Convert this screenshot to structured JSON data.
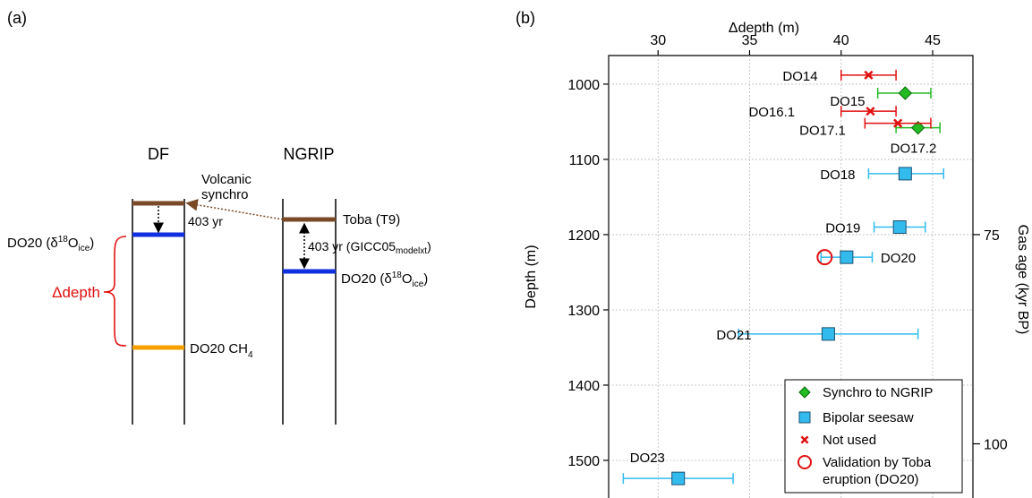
{
  "panel_a": {
    "label": "(a)",
    "df_title": "DF",
    "ngrip_title": "NGRIP",
    "volcanic_line1": "Volcanic",
    "volcanic_line2": "synchro",
    "df_gap": "403 yr",
    "toba": "Toba (T9)",
    "ngrip_gap_main": "403 yr (GICC05",
    "ngrip_gap_sub": "modelxt",
    "ngrip_gap_end": ")",
    "df_do20_main": "DO20 (δ",
    "df_do20_sup": "18",
    "df_do20_mid": "O",
    "df_do20_sub": "ice",
    "df_do20_end": ")",
    "ngrip_do20_main": "DO20 (δ",
    "ngrip_do20_sup": "18",
    "ngrip_do20_mid": "O",
    "ngrip_do20_sub": "ice",
    "ngrip_do20_end": ")",
    "delta_depth": "Δdepth",
    "ch4_main": "DO20 CH",
    "ch4_sub": "4",
    "colors": {
      "toba": "#7a4a26",
      "do20_ice": "#1030e0",
      "ch4": "#f5a000",
      "delta": "#e01010"
    }
  },
  "panel_b": {
    "label": "(b)"
  },
  "chart_data": {
    "type": "scatter",
    "xlabel": "Δdepth (m)",
    "ylabel": "Depth (m)",
    "y2label": "Gas age (kyr BP)",
    "x_axis_position": "top",
    "y_inverted": true,
    "xlim": [
      27.3,
      47.2
    ],
    "ylim": [
      1550,
      962
    ],
    "xticks": [
      30,
      35,
      40,
      45
    ],
    "yticks": [
      1000,
      1100,
      1200,
      1300,
      1400,
      1500
    ],
    "y2ticks": [
      {
        "label": "75",
        "depth": 1200
      },
      {
        "label": "100",
        "depth": 1478
      }
    ],
    "grid": true,
    "legend_position": "bottom-right",
    "series": [
      {
        "name": "Synchro to NGRIP",
        "marker": "diamond",
        "color": "#22bb22",
        "points": [
          {
            "label": "DO15",
            "x": 43.5,
            "y": 1012,
            "xerr_low": 42.0,
            "xerr_high": 44.9
          },
          {
            "label": "DO17.2",
            "x": 44.2,
            "y": 1058,
            "xerr_low": 43.0,
            "xerr_high": 45.4
          }
        ]
      },
      {
        "name": "Bipolar seesaw",
        "marker": "square",
        "color": "#33bbee",
        "points": [
          {
            "label": "DO18",
            "x": 43.5,
            "y": 1119,
            "xerr_low": 41.5,
            "xerr_high": 45.6
          },
          {
            "label": "DO19",
            "x": 43.2,
            "y": 1190,
            "xerr_low": 41.8,
            "xerr_high": 44.6
          },
          {
            "label": "DO20",
            "x": 40.3,
            "y": 1230,
            "xerr_low": 38.9,
            "xerr_high": 41.7
          },
          {
            "label": "DO21",
            "x": 39.3,
            "y": 1332,
            "xerr_low": 34.4,
            "xerr_high": 44.2
          },
          {
            "label": "DO23",
            "x": 31.1,
            "y": 1524,
            "xerr_low": 28.1,
            "xerr_high": 34.1
          }
        ]
      },
      {
        "name": "Not used",
        "marker": "cross",
        "color": "#e01010",
        "points": [
          {
            "label": "DO14",
            "x": 41.5,
            "y": 988,
            "xerr_low": 40.0,
            "xerr_high": 43.0
          },
          {
            "label": "DO16.1",
            "x": 41.6,
            "y": 1036,
            "xerr_low": 40.0,
            "xerr_high": 43.0
          },
          {
            "label": "DO17.1",
            "x": 43.1,
            "y": 1052,
            "xerr_low": 41.3,
            "xerr_high": 44.9
          }
        ]
      },
      {
        "name": "Validation by Toba eruption (DO20)",
        "marker": "open-circle",
        "color": "#e01010",
        "points": [
          {
            "label": "",
            "x": 39.1,
            "y": 1230
          }
        ]
      }
    ],
    "legend": [
      {
        "marker": "diamond",
        "color": "#22bb22",
        "text": "Synchro to NGRIP"
      },
      {
        "marker": "square",
        "color": "#33bbee",
        "text": "Bipolar seesaw"
      },
      {
        "marker": "cross",
        "color": "#e01010",
        "text": "Not used"
      },
      {
        "marker": "open-circle",
        "color": "#e01010",
        "text": "Validation by Toba",
        "text2": "eruption (DO20)"
      }
    ]
  }
}
